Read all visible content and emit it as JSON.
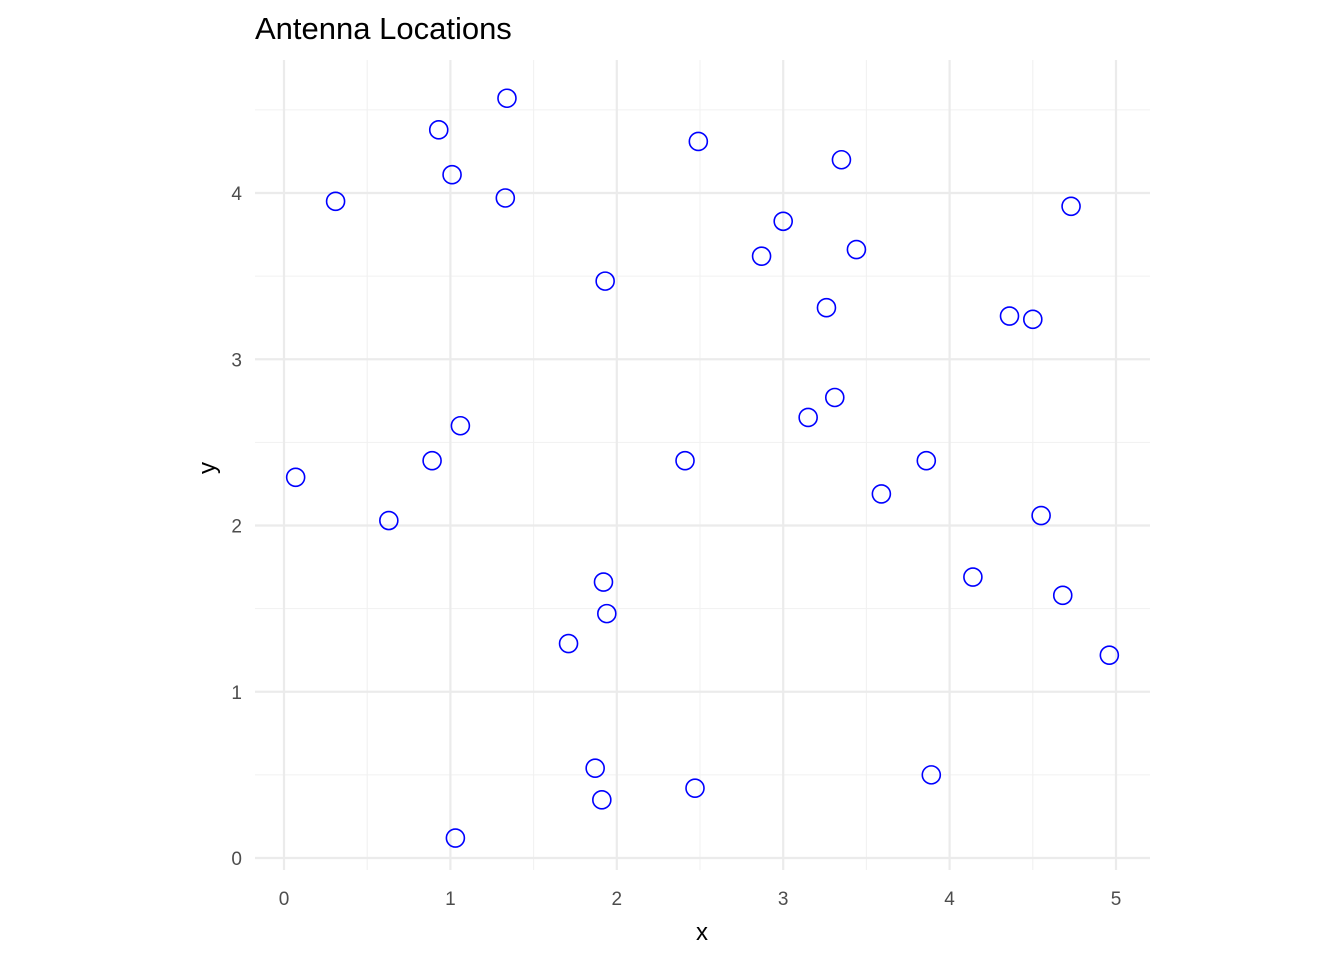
{
  "chart_data": {
    "type": "scatter",
    "title": "Antenna Locations",
    "xlabel": "x",
    "ylabel": "y",
    "xlim": [
      -0.08,
      5.2
    ],
    "ylim": [
      -0.08,
      4.65
    ],
    "x_ticks": [
      0,
      1,
      2,
      3,
      4,
      5
    ],
    "y_ticks": [
      0,
      1,
      2,
      3,
      4
    ],
    "x_minor_ticks": [
      0.5,
      1.5,
      2.5,
      3.5,
      4.5
    ],
    "y_minor_ticks": [
      0.5,
      1.5,
      2.5,
      3.5,
      4.5
    ],
    "grid": true,
    "marker": "hollow-circle",
    "point_color": "#0000ff",
    "grid_color": "#ebebeb",
    "points": [
      {
        "x": 0.07,
        "y": 2.29
      },
      {
        "x": 0.31,
        "y": 3.95
      },
      {
        "x": 0.63,
        "y": 2.03
      },
      {
        "x": 0.89,
        "y": 2.39
      },
      {
        "x": 0.93,
        "y": 4.38
      },
      {
        "x": 1.01,
        "y": 4.11
      },
      {
        "x": 1.03,
        "y": 0.12
      },
      {
        "x": 1.06,
        "y": 2.6
      },
      {
        "x": 1.33,
        "y": 3.97
      },
      {
        "x": 1.34,
        "y": 4.57
      },
      {
        "x": 1.71,
        "y": 1.29
      },
      {
        "x": 1.87,
        "y": 0.54
      },
      {
        "x": 1.91,
        "y": 0.35
      },
      {
        "x": 1.92,
        "y": 1.66
      },
      {
        "x": 1.93,
        "y": 3.47
      },
      {
        "x": 1.94,
        "y": 1.47
      },
      {
        "x": 2.41,
        "y": 2.39
      },
      {
        "x": 2.47,
        "y": 0.42
      },
      {
        "x": 2.49,
        "y": 4.31
      },
      {
        "x": 2.87,
        "y": 3.62
      },
      {
        "x": 3.0,
        "y": 3.83
      },
      {
        "x": 3.15,
        "y": 2.65
      },
      {
        "x": 3.26,
        "y": 3.31
      },
      {
        "x": 3.31,
        "y": 2.77
      },
      {
        "x": 3.35,
        "y": 4.2
      },
      {
        "x": 3.44,
        "y": 3.66
      },
      {
        "x": 3.59,
        "y": 2.19
      },
      {
        "x": 3.86,
        "y": 2.39
      },
      {
        "x": 3.89,
        "y": 0.5
      },
      {
        "x": 4.14,
        "y": 1.69
      },
      {
        "x": 4.36,
        "y": 3.26
      },
      {
        "x": 4.5,
        "y": 3.24
      },
      {
        "x": 4.55,
        "y": 2.06
      },
      {
        "x": 4.68,
        "y": 1.58
      },
      {
        "x": 4.73,
        "y": 3.92
      },
      {
        "x": 4.96,
        "y": 1.22
      }
    ]
  }
}
